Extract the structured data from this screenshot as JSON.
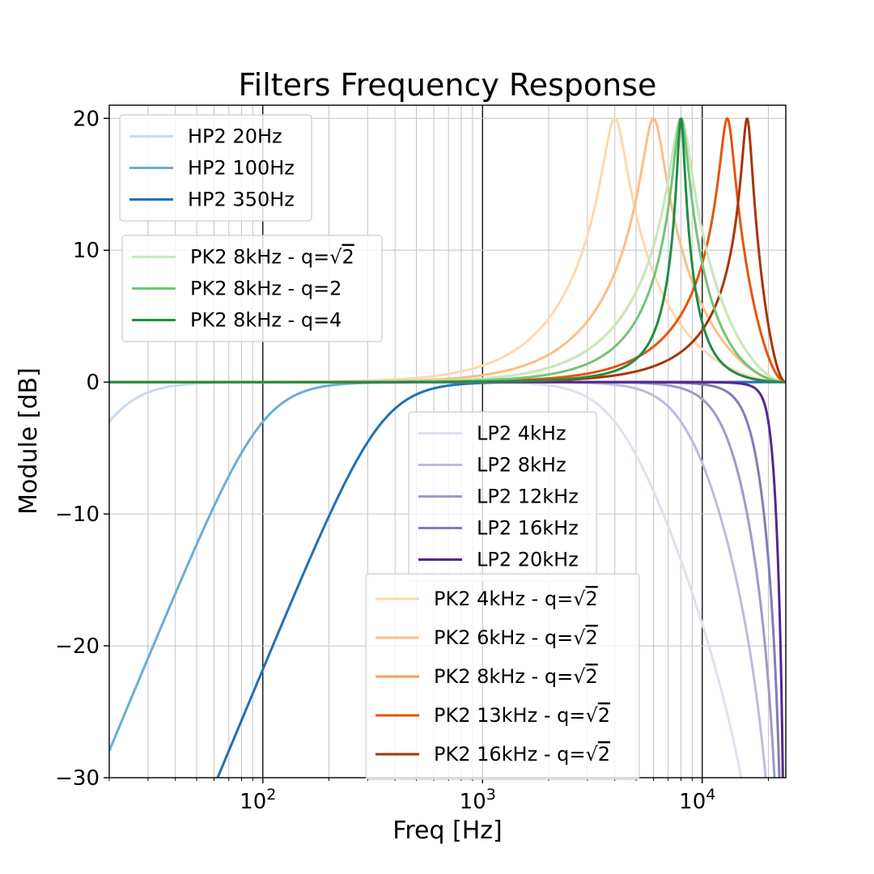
{
  "chart_data": {
    "type": "line",
    "title": "Filters Frequency Response",
    "xlabel": "Freq [Hz]",
    "ylabel": "Module [dB]",
    "xscale": "log",
    "xlim": [
      20,
      24000
    ],
    "ylim": [
      -30,
      21
    ],
    "grid": true,
    "x_tick_labels": [
      {
        "value": 100,
        "base": "10",
        "exp": "2"
      },
      {
        "value": 1000,
        "base": "10",
        "exp": "3"
      },
      {
        "value": 10000,
        "base": "10",
        "exp": "4"
      }
    ],
    "y_ticks": [
      20,
      10,
      0,
      -10,
      -20,
      -30
    ],
    "y_tick_labels": [
      "20",
      "10",
      "0",
      "−10",
      "−20",
      "−30"
    ],
    "series": [
      {
        "name": "HP2 20Hz",
        "label": "HP2 20Hz",
        "sqrt": false,
        "kind": "hp",
        "fc": 20,
        "q": 0.7071,
        "color": "#c6dbef"
      },
      {
        "name": "HP2 100Hz",
        "label": "HP2 100Hz",
        "sqrt": false,
        "kind": "hp",
        "fc": 100,
        "q": 0.7071,
        "color": "#6baed6"
      },
      {
        "name": "HP2 350Hz",
        "label": "HP2 350Hz",
        "sqrt": false,
        "kind": "hp",
        "fc": 350,
        "q": 0.7071,
        "color": "#2171b5"
      },
      {
        "name": "PK2 8kHz - q=√2",
        "label": "PK2 8kHz - q=",
        "sqrt": true,
        "sqrt_arg": "2",
        "kind": "pk",
        "fc": 8000,
        "q": 1.4142,
        "gain": 20,
        "color": "#c7e9c0"
      },
      {
        "name": "PK2 8kHz - q=2",
        "label": "PK2 8kHz - q=2",
        "sqrt": false,
        "kind": "pk",
        "fc": 8000,
        "q": 2,
        "gain": 20,
        "color": "#74c476"
      },
      {
        "name": "PK2 8kHz - q=4",
        "label": "PK2 8kHz - q=4",
        "sqrt": false,
        "kind": "pk",
        "fc": 8000,
        "q": 4,
        "gain": 20,
        "color": "#238b45"
      },
      {
        "name": "LP2 4kHz",
        "label": "LP2 4kHz",
        "sqrt": false,
        "kind": "lp",
        "fc": 4000,
        "q": 0.7071,
        "color": "#e0e0ef"
      },
      {
        "name": "LP2 8kHz",
        "label": "LP2 8kHz",
        "sqrt": false,
        "kind": "lp",
        "fc": 8000,
        "q": 0.7071,
        "color": "#bcbddc"
      },
      {
        "name": "LP2 12kHz",
        "label": "LP2 12kHz",
        "sqrt": false,
        "kind": "lp",
        "fc": 12000,
        "q": 0.7071,
        "color": "#9e9ac8"
      },
      {
        "name": "LP2 16kHz",
        "label": "LP2 16kHz",
        "sqrt": false,
        "kind": "lp",
        "fc": 16000,
        "q": 0.7071,
        "color": "#807dba"
      },
      {
        "name": "LP2 20kHz",
        "label": "LP2 20kHz",
        "sqrt": false,
        "kind": "lp",
        "fc": 20000,
        "q": 0.7071,
        "color": "#54278f"
      },
      {
        "name": "PK2 4kHz - q=√2",
        "label": "PK2 4kHz - q=",
        "sqrt": true,
        "sqrt_arg": "2",
        "kind": "pk",
        "fc": 4000,
        "q": 1.4142,
        "gain": 20,
        "color": "#fdd9b0"
      },
      {
        "name": "PK2 6kHz - q=√2",
        "label": "PK2 6kHz - q=",
        "sqrt": true,
        "sqrt_arg": "2",
        "kind": "pk",
        "fc": 6000,
        "q": 1.4142,
        "gain": 20,
        "color": "#fdbe85"
      },
      {
        "name": "PK2 8kHz - q=√2",
        "label": "PK2 8kHz - q=",
        "sqrt": true,
        "sqrt_arg": "2",
        "kind": "pk",
        "fc": 8000,
        "q": 1.4142,
        "gain": 20,
        "color": "#fd9f56"
      },
      {
        "name": "PK2 13kHz - q=√2",
        "label": "PK2 13kHz - q=",
        "sqrt": true,
        "sqrt_arg": "2",
        "kind": "pk",
        "fc": 13000,
        "q": 1.4142,
        "gain": 20,
        "color": "#e6550d"
      },
      {
        "name": "PK2 16kHz - q=√2",
        "label": "PK2 16kHz - q=",
        "sqrt": true,
        "sqrt_arg": "2",
        "kind": "pk",
        "fc": 16000,
        "q": 1.4142,
        "gain": 20,
        "color": "#a63603"
      }
    ],
    "legends": [
      {
        "placement": "upper-left",
        "series": [
          0,
          1,
          2
        ]
      },
      {
        "placement": "middle-left",
        "series": [
          3,
          4,
          5
        ]
      },
      {
        "placement": "center",
        "series": [
          6,
          7,
          8,
          9,
          10
        ]
      },
      {
        "placement": "lower-center",
        "series": [
          11,
          12,
          13,
          14,
          15
        ]
      }
    ]
  }
}
